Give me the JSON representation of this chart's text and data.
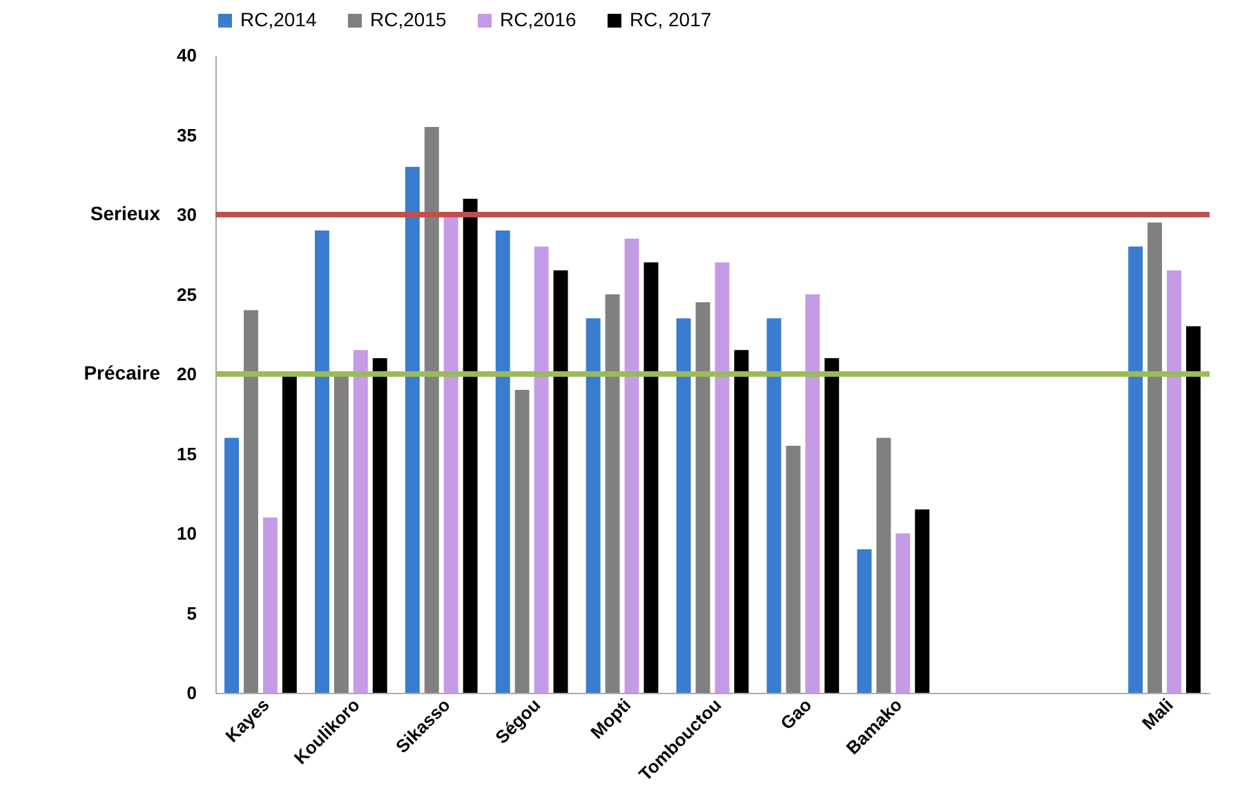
{
  "chart_data": {
    "type": "bar",
    "categories": [
      "Kayes",
      "Koulikoro",
      "Sikasso",
      "Ségou",
      "Mopti",
      "Tombouctou",
      "Gao",
      "Bamako",
      null,
      null,
      "Mali"
    ],
    "series": [
      {
        "name": "RC,2014",
        "color": "#3a7cd0",
        "values": [
          16,
          29,
          33,
          29,
          23.5,
          23.5,
          23.5,
          9,
          null,
          null,
          28
        ]
      },
      {
        "name": "RC,2015",
        "color": "#808080",
        "values": [
          24,
          20,
          35.5,
          19,
          25,
          24.5,
          15.5,
          16,
          null,
          null,
          29.5
        ]
      },
      {
        "name": "RC,2016",
        "color": "#c59be6",
        "values": [
          11,
          21.5,
          30,
          28,
          28.5,
          27,
          25,
          10,
          null,
          null,
          26.5
        ]
      },
      {
        "name": "RC, 2017",
        "color": "#000000",
        "values": [
          20,
          21,
          31,
          26.5,
          27,
          21.5,
          21,
          11.5,
          null,
          null,
          23
        ]
      }
    ],
    "ylim": [
      0,
      40
    ],
    "yticks": [
      0,
      5,
      10,
      15,
      20,
      25,
      30,
      35,
      40
    ],
    "ref_lines": [
      {
        "axis": "y",
        "value": 30,
        "label": "Serieux",
        "color": "#c0504d"
      },
      {
        "axis": "y",
        "value": 20,
        "label": "Précaire",
        "color": "#9bbb59"
      }
    ],
    "grid": false,
    "legend": "top"
  }
}
